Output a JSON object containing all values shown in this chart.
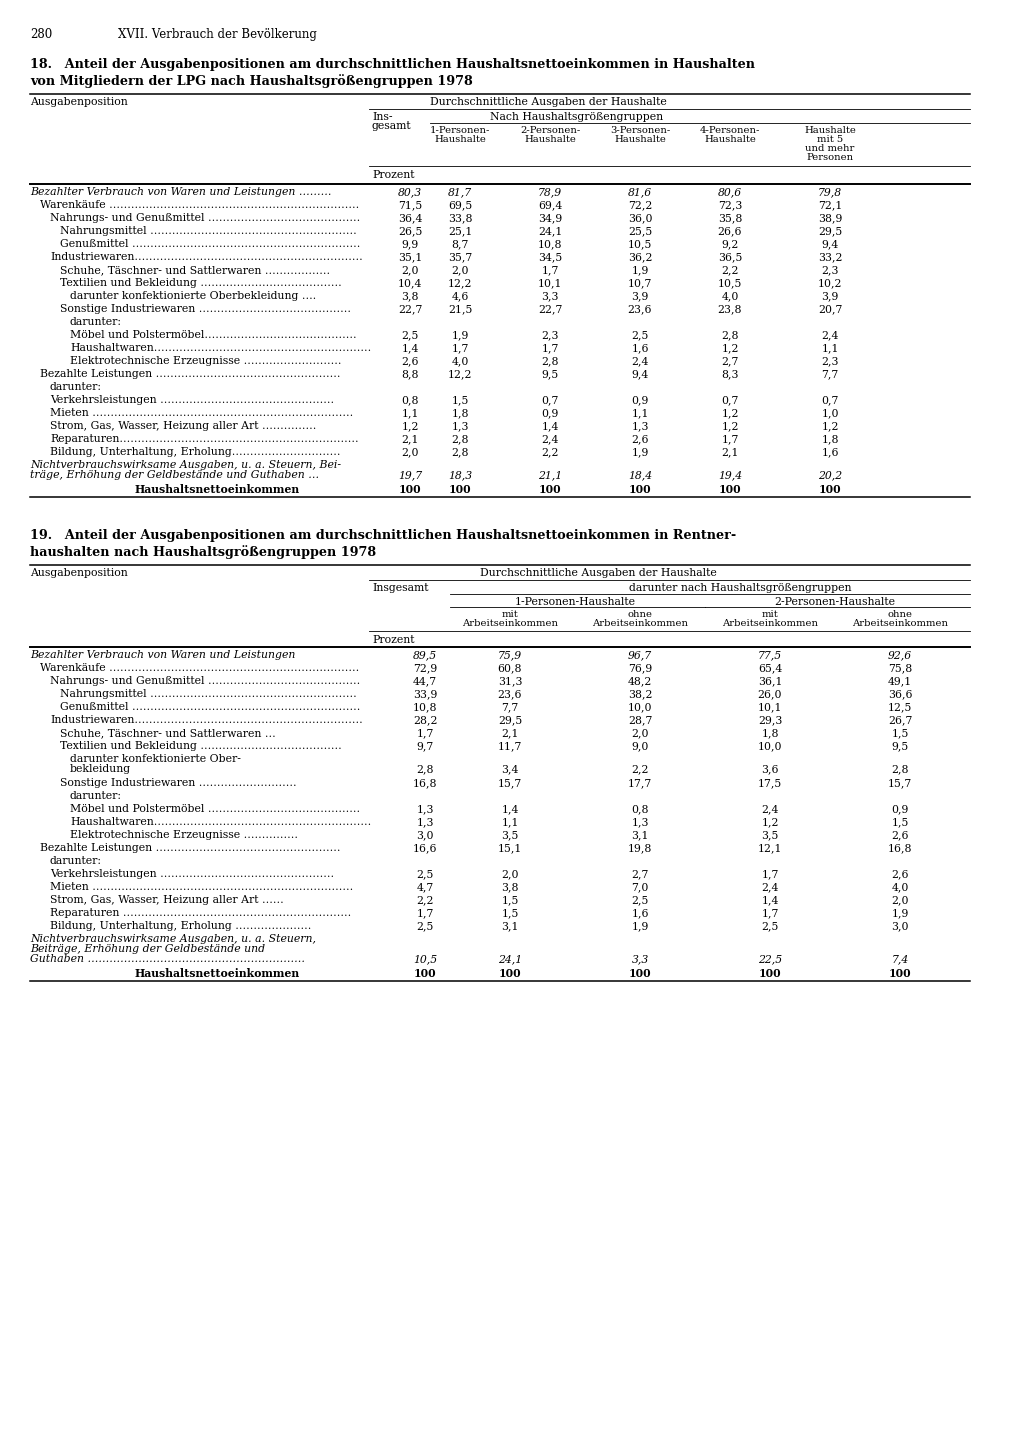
{
  "page_num": "280",
  "page_header": "XVII. Verbrauch der Bevölkerung",
  "table1_title_line1": "18. Anteil der Ausgabenpositionen am durchschnittlichen Haushaltsnettoeinkommen in Haushalten",
  "table1_title_line2": "von Mitgliedern der LPG nach Haushaltsgrößengruppen 1978",
  "table2_title_line1": "19. Anteil der Ausgabenpositionen am durchschnittlichen Haushaltsnettoeinkommen in Rentner-",
  "table2_title_line2": "haushalten nach Haushaltsgrößengruppen 1978",
  "table1_rows": [
    {
      "label": "Bezahlter Verbrauch von Waren und Leistungen ………",
      "indent": 0,
      "italic": true,
      "bold": false,
      "values": [
        "80,3",
        "81,7",
        "78,9",
        "81,6",
        "80,6",
        "79,8"
      ],
      "lines": 1
    },
    {
      "label": "Warenkäufe ……………………………………………………………",
      "indent": 1,
      "italic": false,
      "bold": false,
      "values": [
        "71,5",
        "69,5",
        "69,4",
        "72,2",
        "72,3",
        "72,1"
      ],
      "lines": 1
    },
    {
      "label": "Nahrungs- und Genußmittel ……………………………………",
      "indent": 2,
      "italic": false,
      "bold": false,
      "values": [
        "36,4",
        "33,8",
        "34,9",
        "36,0",
        "35,8",
        "38,9"
      ],
      "lines": 1
    },
    {
      "label": "Nahrungsmittel …………………………………………………",
      "indent": 3,
      "italic": false,
      "bold": false,
      "values": [
        "26,5",
        "25,1",
        "24,1",
        "25,5",
        "26,6",
        "29,5"
      ],
      "lines": 1
    },
    {
      "label": "Genußmittel ………………………………………………………",
      "indent": 3,
      "italic": false,
      "bold": false,
      "values": [
        "9,9",
        "8,7",
        "10,8",
        "10,5",
        "9,2",
        "9,4"
      ],
      "lines": 1
    },
    {
      "label": "Industriewaren………………………………………………………",
      "indent": 2,
      "italic": false,
      "bold": false,
      "values": [
        "35,1",
        "35,7",
        "34,5",
        "36,2",
        "36,5",
        "33,2"
      ],
      "lines": 1
    },
    {
      "label": "Schuhe, Täschner- und Sattlerwaren ………………",
      "indent": 3,
      "italic": false,
      "bold": false,
      "values": [
        "2,0",
        "2,0",
        "1,7",
        "1,9",
        "2,2",
        "2,3"
      ],
      "lines": 1
    },
    {
      "label": "Textilien und Bekleidung …………………………………",
      "indent": 3,
      "italic": false,
      "bold": false,
      "values": [
        "10,4",
        "12,2",
        "10,1",
        "10,7",
        "10,5",
        "10,2"
      ],
      "lines": 1
    },
    {
      "label": "darunter konfektionierte Oberbekleidung ….",
      "indent": 4,
      "italic": false,
      "bold": false,
      "values": [
        "3,8",
        "4,6",
        "3,3",
        "3,9",
        "4,0",
        "3,9"
      ],
      "lines": 1
    },
    {
      "label": "Sonstige Industriewaren ……………………………………",
      "indent": 3,
      "italic": false,
      "bold": false,
      "values": [
        "22,7",
        "21,5",
        "22,7",
        "23,6",
        "23,8",
        "20,7"
      ],
      "lines": 1
    },
    {
      "label": "darunter:",
      "indent": 4,
      "italic": false,
      "bold": false,
      "values": [
        "",
        "",
        "",
        "",
        "",
        ""
      ],
      "lines": 1
    },
    {
      "label": "Möbel und Polstermöbel……………………………………",
      "indent": 4,
      "italic": false,
      "bold": false,
      "values": [
        "2,5",
        "1,9",
        "2,3",
        "2,5",
        "2,8",
        "2,4"
      ],
      "lines": 1
    },
    {
      "label": "Haushaltwaren……………………………………………………",
      "indent": 4,
      "italic": false,
      "bold": false,
      "values": [
        "1,4",
        "1,7",
        "1,7",
        "1,6",
        "1,2",
        "1,1"
      ],
      "lines": 1
    },
    {
      "label": "Elektrotechnische Erzeugnisse ………………………",
      "indent": 4,
      "italic": false,
      "bold": false,
      "values": [
        "2,6",
        "4,0",
        "2,8",
        "2,4",
        "2,7",
        "2,3"
      ],
      "lines": 1
    },
    {
      "label": "Bezahlte Leistungen ……………………………………………",
      "indent": 1,
      "italic": false,
      "bold": false,
      "values": [
        "8,8",
        "12,2",
        "9,5",
        "9,4",
        "8,3",
        "7,7"
      ],
      "lines": 1
    },
    {
      "label": "darunter:",
      "indent": 2,
      "italic": false,
      "bold": false,
      "values": [
        "",
        "",
        "",
        "",
        "",
        ""
      ],
      "lines": 1
    },
    {
      "label": "Verkehrsleistungen …………………………………………",
      "indent": 2,
      "italic": false,
      "bold": false,
      "values": [
        "0,8",
        "1,5",
        "0,7",
        "0,9",
        "0,7",
        "0,7"
      ],
      "lines": 1
    },
    {
      "label": "Mieten ………………………………………………………………",
      "indent": 2,
      "italic": false,
      "bold": false,
      "values": [
        "1,1",
        "1,8",
        "0,9",
        "1,1",
        "1,2",
        "1,0"
      ],
      "lines": 1
    },
    {
      "label": "Strom, Gas, Wasser, Heizung aller Art ……………",
      "indent": 2,
      "italic": false,
      "bold": false,
      "values": [
        "1,2",
        "1,3",
        "1,4",
        "1,3",
        "1,2",
        "1,2"
      ],
      "lines": 1
    },
    {
      "label": "Reparaturen…………………………………………………………",
      "indent": 2,
      "italic": false,
      "bold": false,
      "values": [
        "2,1",
        "2,8",
        "2,4",
        "2,6",
        "1,7",
        "1,8"
      ],
      "lines": 1
    },
    {
      "label": "Bildung, Unterhaltung, Erholung…………………………",
      "indent": 2,
      "italic": false,
      "bold": false,
      "values": [
        "2,0",
        "2,8",
        "2,2",
        "1,9",
        "2,1",
        "1,6"
      ],
      "lines": 1
    },
    {
      "label": "Nichtverbrauchswirksame Ausgaben, u. a. Steuern, Bei-",
      "indent": 0,
      "italic": true,
      "bold": false,
      "values": [
        "",
        "",
        "",
        "",
        "",
        ""
      ],
      "lines": 2,
      "label2": "träge, Erhöhung der Geldbestände und Guthaben …",
      "values2": [
        "19,7",
        "18,3",
        "21,1",
        "18,4",
        "19,4",
        "20,2"
      ]
    },
    {
      "label": "Haushaltsnettoeinkommen",
      "indent": 5,
      "italic": false,
      "bold": true,
      "values": [
        "100",
        "100",
        "100",
        "100",
        "100",
        "100"
      ],
      "lines": 1
    }
  ],
  "table2_rows": [
    {
      "label": "Bezahlter Verbrauch von Waren und Leistungen",
      "indent": 0,
      "italic": true,
      "bold": false,
      "values": [
        "89,5",
        "75,9",
        "96,7",
        "77,5",
        "92,6"
      ],
      "lines": 1
    },
    {
      "label": "Warenkäufe ……………………………………………………………",
      "indent": 1,
      "italic": false,
      "bold": false,
      "values": [
        "72,9",
        "60,8",
        "76,9",
        "65,4",
        "75,8"
      ],
      "lines": 1
    },
    {
      "label": "Nahrungs- und Genußmittel ……………………………………",
      "indent": 2,
      "italic": false,
      "bold": false,
      "values": [
        "44,7",
        "31,3",
        "48,2",
        "36,1",
        "49,1"
      ],
      "lines": 1
    },
    {
      "label": "Nahrungsmittel …………………………………………………",
      "indent": 3,
      "italic": false,
      "bold": false,
      "values": [
        "33,9",
        "23,6",
        "38,2",
        "26,0",
        "36,6"
      ],
      "lines": 1
    },
    {
      "label": "Genußmittel ………………………………………………………",
      "indent": 3,
      "italic": false,
      "bold": false,
      "values": [
        "10,8",
        "7,7",
        "10,0",
        "10,1",
        "12,5"
      ],
      "lines": 1
    },
    {
      "label": "Industriewaren………………………………………………………",
      "indent": 2,
      "italic": false,
      "bold": false,
      "values": [
        "28,2",
        "29,5",
        "28,7",
        "29,3",
        "26,7"
      ],
      "lines": 1
    },
    {
      "label": "Schuhe, Täschner- und Sattlerwaren …",
      "indent": 3,
      "italic": false,
      "bold": false,
      "values": [
        "1,7",
        "2,1",
        "2,0",
        "1,8",
        "1,5"
      ],
      "lines": 1
    },
    {
      "label": "Textilien und Bekleidung …………………………………",
      "indent": 3,
      "italic": false,
      "bold": false,
      "values": [
        "9,7",
        "11,7",
        "9,0",
        "10,0",
        "9,5"
      ],
      "lines": 1
    },
    {
      "label": "darunter konfektionierte Ober-",
      "indent": 4,
      "italic": false,
      "bold": false,
      "values": [
        "",
        "",
        "",
        "",
        ""
      ],
      "lines": 2,
      "label2": "bekleidung",
      "values2": [
        "2,8",
        "3,4",
        "2,2",
        "3,6",
        "2,8"
      ]
    },
    {
      "label": "Sonstige Industriewaren ………………………",
      "indent": 3,
      "italic": false,
      "bold": false,
      "values": [
        "16,8",
        "15,7",
        "17,7",
        "17,5",
        "15,7"
      ],
      "lines": 1
    },
    {
      "label": "darunter:",
      "indent": 4,
      "italic": false,
      "bold": false,
      "values": [
        "",
        "",
        "",
        "",
        ""
      ],
      "lines": 1
    },
    {
      "label": "Möbel und Polstermöbel ……………………………………",
      "indent": 4,
      "italic": false,
      "bold": false,
      "values": [
        "1,3",
        "1,4",
        "0,8",
        "2,4",
        "0,9"
      ],
      "lines": 1
    },
    {
      "label": "Haushaltwaren……………………………………………………",
      "indent": 4,
      "italic": false,
      "bold": false,
      "values": [
        "1,3",
        "1,1",
        "1,3",
        "1,2",
        "1,5"
      ],
      "lines": 1
    },
    {
      "label": "Elektrotechnische Erzeugnisse ……………",
      "indent": 4,
      "italic": false,
      "bold": false,
      "values": [
        "3,0",
        "3,5",
        "3,1",
        "3,5",
        "2,6"
      ],
      "lines": 1
    },
    {
      "label": "Bezahlte Leistungen ……………………………………………",
      "indent": 1,
      "italic": false,
      "bold": false,
      "values": [
        "16,6",
        "15,1",
        "19,8",
        "12,1",
        "16,8"
      ],
      "lines": 1
    },
    {
      "label": "darunter:",
      "indent": 2,
      "italic": false,
      "bold": false,
      "values": [
        "",
        "",
        "",
        "",
        ""
      ],
      "lines": 1
    },
    {
      "label": "Verkehrsleistungen …………………………………………",
      "indent": 2,
      "italic": false,
      "bold": false,
      "values": [
        "2,5",
        "2,0",
        "2,7",
        "1,7",
        "2,6"
      ],
      "lines": 1
    },
    {
      "label": "Mieten ………………………………………………………………",
      "indent": 2,
      "italic": false,
      "bold": false,
      "values": [
        "4,7",
        "3,8",
        "7,0",
        "2,4",
        "4,0"
      ],
      "lines": 1
    },
    {
      "label": "Strom, Gas, Wasser, Heizung aller Art ……",
      "indent": 2,
      "italic": false,
      "bold": false,
      "values": [
        "2,2",
        "1,5",
        "2,5",
        "1,4",
        "2,0"
      ],
      "lines": 1
    },
    {
      "label": "Reparaturen ………………………………………………………",
      "indent": 2,
      "italic": false,
      "bold": false,
      "values": [
        "1,7",
        "1,5",
        "1,6",
        "1,7",
        "1,9"
      ],
      "lines": 1
    },
    {
      "label": "Bildung, Unterhaltung, Erholung …………………",
      "indent": 2,
      "italic": false,
      "bold": false,
      "values": [
        "2,5",
        "3,1",
        "1,9",
        "2,5",
        "3,0"
      ],
      "lines": 1
    },
    {
      "label": "Nichtverbrauchswirksame Ausgaben, u. a. Steuern,",
      "indent": 0,
      "italic": true,
      "bold": false,
      "values": [
        "",
        "",
        "",
        "",
        ""
      ],
      "lines": 3,
      "label2": "Beiträge, Erhöhung der Geldbestände und",
      "label3": "Guthaben ……………………………………………………",
      "values2": [
        "10,5",
        "24,1",
        "3,3",
        "22,5",
        "7,4"
      ]
    },
    {
      "label": "Haushaltsnettoeinkommen",
      "indent": 5,
      "italic": false,
      "bold": true,
      "values": [
        "100",
        "100",
        "100",
        "100",
        "100"
      ],
      "lines": 1
    }
  ]
}
